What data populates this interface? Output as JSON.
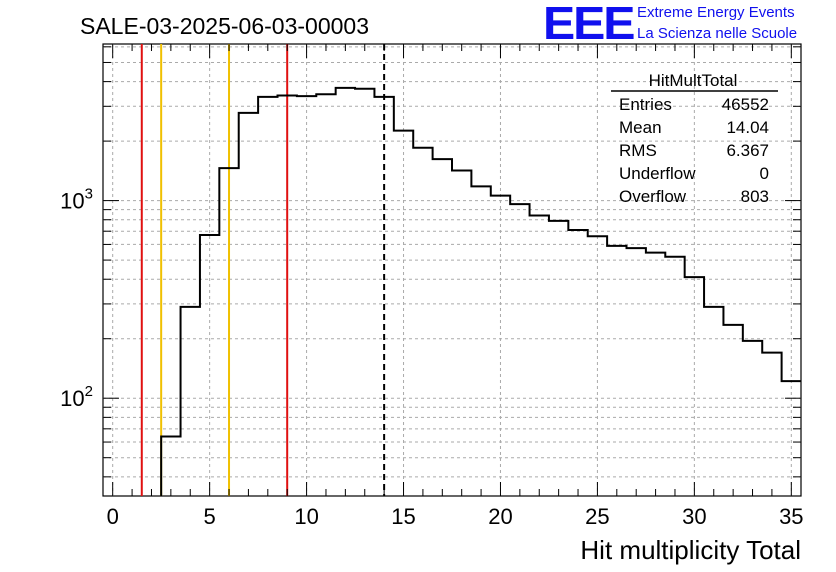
{
  "header": {
    "run_title": "SALE-03-2025-06-03-00003",
    "logo_text": "EEE",
    "logo_line1": "Extreme Energy Events",
    "logo_line2": "La Scienza nelle Scuole"
  },
  "stats_box": {
    "title": "HitMultTotal",
    "rows": [
      {
        "label": "Entries",
        "value": "46552"
      },
      {
        "label": "Mean",
        "value": "14.04"
      },
      {
        "label": "RMS",
        "value": "6.367"
      },
      {
        "label": "Underflow",
        "value": "0"
      },
      {
        "label": "Overflow",
        "value": "803"
      }
    ]
  },
  "colors": {
    "hist": "#000000",
    "red_line": "#e01010",
    "yellow_line": "#f0c000",
    "grid": "#aaaaaa",
    "logo": "#1010ee"
  },
  "chart_data": {
    "type": "bar",
    "style": "step-histogram",
    "title": "",
    "xlabel": "Hit multiplicity Total",
    "ylabel": "",
    "yscale": "log",
    "xlim": [
      -0.5,
      35.5
    ],
    "ylim": [
      32,
      6200
    ],
    "grid": true,
    "bin_width": 1,
    "bin_centers": [
      0,
      1,
      2,
      3,
      4,
      5,
      6,
      7,
      8,
      9,
      10,
      11,
      12,
      13,
      14,
      15,
      16,
      17,
      18,
      19,
      20,
      21,
      22,
      23,
      24,
      25,
      26,
      27,
      28,
      29,
      30,
      31,
      32,
      33,
      34,
      35
    ],
    "values": [
      0,
      0,
      0,
      64,
      290,
      670,
      1460,
      2780,
      3350,
      3400,
      3380,
      3450,
      3720,
      3680,
      3350,
      2260,
      1850,
      1620,
      1420,
      1180,
      1060,
      960,
      840,
      790,
      710,
      660,
      590,
      575,
      545,
      520,
      410,
      290,
      235,
      195,
      170,
      122
    ],
    "x_ticks": [
      0,
      5,
      10,
      15,
      20,
      25,
      30,
      35
    ],
    "x_tick_labels": [
      "0",
      "5",
      "10",
      "15",
      "20",
      "25",
      "30",
      "35"
    ],
    "y_ticks": [
      100,
      1000
    ],
    "y_tick_labels": [
      {
        "base": "10",
        "exp": "2"
      },
      {
        "base": "10",
        "exp": "3"
      }
    ],
    "vertical_lines": [
      {
        "x": 1.5,
        "color": "red",
        "style": "solid"
      },
      {
        "x": 2.5,
        "color": "yellow",
        "style": "solid"
      },
      {
        "x": 6.0,
        "color": "yellow",
        "style": "solid"
      },
      {
        "x": 9.0,
        "color": "red",
        "style": "solid"
      },
      {
        "x": 14.0,
        "color": "black",
        "style": "dashed"
      }
    ],
    "legend": "top-right"
  }
}
